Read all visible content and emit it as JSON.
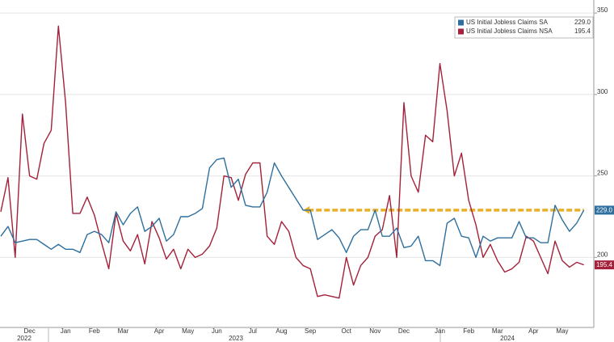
{
  "chart_data": {
    "type": "line",
    "categories": [
      null,
      null,
      null,
      null,
      "Dec",
      null,
      null,
      null,
      null,
      "Jan",
      null,
      null,
      null,
      "Feb",
      null,
      null,
      null,
      "Mar",
      null,
      null,
      null,
      null,
      "Apr",
      null,
      null,
      null,
      "May",
      null,
      null,
      null,
      "Jun",
      null,
      null,
      null,
      null,
      "Jul",
      null,
      null,
      null,
      "Aug",
      null,
      null,
      null,
      "Sep",
      null,
      null,
      null,
      null,
      "Oct",
      null,
      null,
      null,
      "Nov",
      null,
      null,
      null,
      "Dec",
      null,
      null,
      null,
      null,
      "Jan",
      null,
      null,
      null,
      "Feb",
      null,
      null,
      null,
      "Mar",
      null,
      null,
      null,
      null,
      "Apr",
      null,
      null,
      null,
      "May",
      null,
      null,
      null
    ],
    "years": [
      "2022",
      "2023",
      "2024"
    ],
    "series": [
      {
        "name": "US Initial Jobless Claims SA",
        "color": "#2e6f9e",
        "values": [
          213,
          219,
          209,
          210,
          211,
          211,
          208,
          205,
          208,
          205,
          205,
          203,
          214,
          216,
          214,
          209,
          228,
          220,
          227,
          231,
          216,
          219,
          224,
          210,
          214,
          225,
          225,
          227,
          230,
          255,
          260,
          261,
          243,
          248,
          232,
          231,
          231,
          240,
          258,
          250,
          243,
          236,
          229,
          229,
          211,
          214,
          217,
          212,
          203,
          213,
          217,
          217,
          229,
          213,
          213,
          218,
          206,
          207,
          213,
          198,
          198,
          195,
          221,
          224,
          213,
          212,
          200,
          213,
          210,
          212,
          212,
          212,
          222,
          212,
          212,
          209,
          209,
          232,
          223,
          216,
          221,
          229
        ],
        "value_labels": [
          null,
          null,
          null,
          null,
          null,
          null,
          null,
          null,
          null,
          null,
          null,
          null,
          null,
          null,
          null,
          null,
          null,
          null,
          null,
          null,
          null,
          null,
          null,
          null,
          null,
          null,
          null,
          null,
          null,
          null,
          null,
          null,
          null,
          null,
          null,
          null,
          null,
          null,
          null,
          null,
          null,
          null,
          null,
          null,
          null,
          null,
          null,
          null,
          null,
          null,
          null,
          null,
          null,
          null,
          null,
          null,
          null,
          null,
          null,
          null,
          null,
          null,
          null,
          null,
          null,
          null,
          null,
          null,
          null,
          null,
          null,
          null,
          null,
          null,
          null,
          null,
          null,
          null,
          null,
          null,
          null,
          "229.0"
        ]
      },
      {
        "name": "US Initial Jobless Claims NSA",
        "color": "#a3213a",
        "values": [
          228,
          249,
          200,
          288,
          250,
          248,
          270,
          278,
          342,
          295,
          227,
          227,
          237,
          226,
          209,
          193,
          227,
          210,
          204,
          214,
          196,
          222,
          212,
          199,
          205,
          193,
          205,
          200,
          202,
          207,
          218,
          250,
          249,
          235,
          251,
          258,
          258,
          213,
          208,
          222,
          216,
          200,
          195,
          193,
          176,
          177,
          176,
          175,
          200,
          183,
          195,
          200,
          213,
          217,
          238,
          200,
          295,
          250,
          240,
          275,
          271,
          319,
          290,
          250,
          264,
          235,
          220,
          200,
          208,
          198,
          191,
          193,
          197,
          213,
          210,
          200,
          190,
          210,
          198,
          194,
          197,
          195.4
        ],
        "value_labels": [
          null,
          null,
          null,
          null,
          null,
          null,
          null,
          null,
          null,
          null,
          null,
          null,
          null,
          null,
          null,
          null,
          null,
          null,
          null,
          null,
          null,
          null,
          null,
          null,
          null,
          null,
          null,
          null,
          null,
          null,
          null,
          null,
          null,
          null,
          null,
          null,
          null,
          null,
          null,
          null,
          null,
          null,
          null,
          null,
          null,
          null,
          null,
          null,
          null,
          null,
          null,
          null,
          null,
          null,
          null,
          null,
          null,
          null,
          null,
          null,
          null,
          null,
          null,
          null,
          null,
          null,
          null,
          null,
          null,
          null,
          null,
          null,
          null,
          null,
          null,
          null,
          null,
          null,
          null,
          null,
          null,
          "195.4"
        ]
      }
    ],
    "ylim": [
      157,
      358
    ],
    "yticks": [
      200,
      250,
      300,
      350
    ],
    "grid": true,
    "annotation_color": "#e8b02a"
  }
}
